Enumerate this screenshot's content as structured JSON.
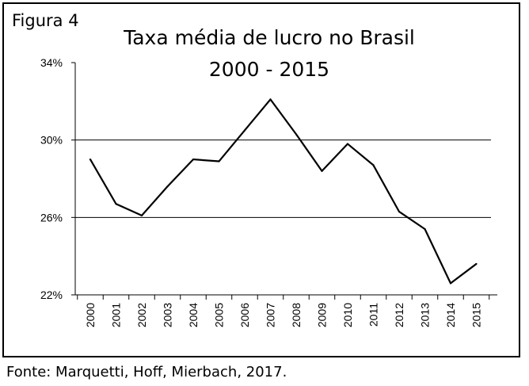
{
  "figure_label": "Figura 4",
  "source": "Fonte: Marquetti, Hoff, Mierbach, 2017.",
  "chart_data": {
    "type": "line",
    "title": "Taxa média de lucro no Brasil",
    "subtitle": "2000 - 2015",
    "xlabel": "",
    "ylabel": "",
    "categories": [
      "2000",
      "2001",
      "2002",
      "2003",
      "2004",
      "2005",
      "2006",
      "2007",
      "2008",
      "2009",
      "2010",
      "2011",
      "2012",
      "2013",
      "2014",
      "2015"
    ],
    "values": [
      29.0,
      26.7,
      26.1,
      27.6,
      29.0,
      28.9,
      30.5,
      32.1,
      30.3,
      28.4,
      29.8,
      28.7,
      26.3,
      25.4,
      22.6,
      23.6
    ],
    "ylim": [
      22,
      34
    ],
    "yticks": [
      22,
      26,
      30,
      34
    ],
    "ytick_labels": [
      "22%",
      "26%",
      "30%",
      "34%"
    ],
    "gridlines": [
      26,
      30
    ],
    "line_color": "#000000",
    "grid": true
  }
}
